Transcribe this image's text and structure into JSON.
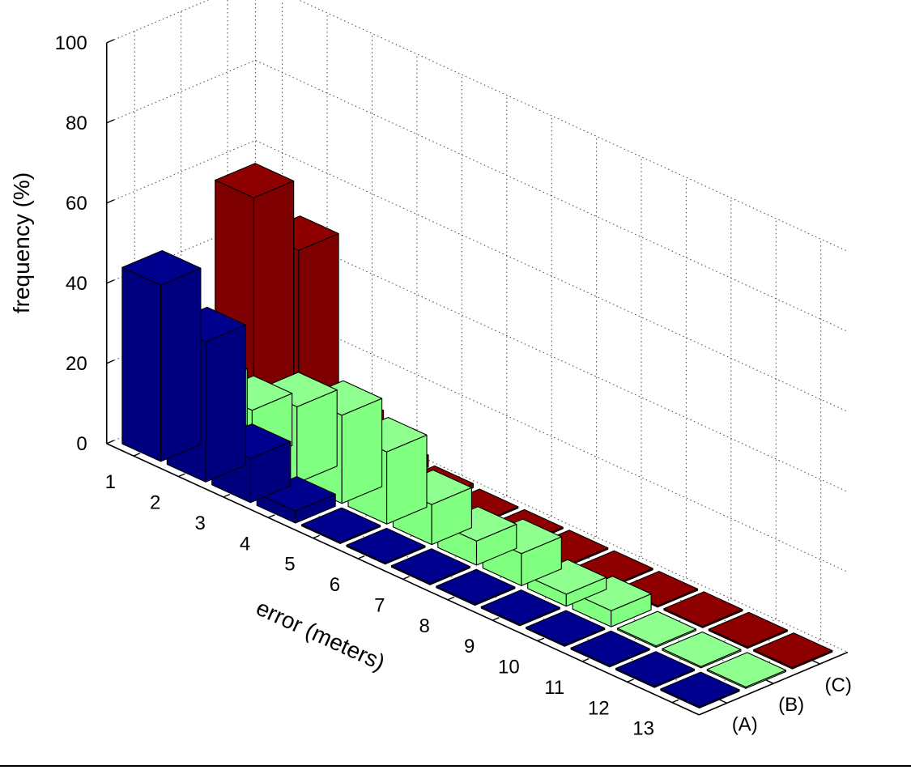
{
  "chart_data": {
    "type": "bar3d",
    "title": "",
    "xlabel": "error (meters)",
    "ylabel": "",
    "zlabel": "frequency (%)",
    "categories": [
      "1",
      "2",
      "3",
      "4",
      "5",
      "6",
      "7",
      "8",
      "9",
      "10",
      "11",
      "12",
      "13"
    ],
    "zlim": [
      0,
      100
    ],
    "zticks": [
      "0",
      "20",
      "40",
      "60",
      "80",
      "100"
    ],
    "grid": true,
    "series": [
      {
        "name": "(A)",
        "color": "#00007f",
        "values": [
          44,
          35,
          11,
          3,
          0,
          0,
          0,
          0,
          0,
          0,
          0,
          0,
          0
        ]
      },
      {
        "name": "(B)",
        "color": "#80ff80",
        "values": [
          14,
          13,
          19,
          22,
          18,
          10,
          6,
          8,
          3,
          4,
          0,
          0,
          0
        ]
      },
      {
        "name": "(C)",
        "color": "#7f0000",
        "values": [
          56,
          48,
          9,
          3,
          1,
          0,
          0,
          0,
          0,
          0,
          0,
          0,
          0
        ]
      }
    ]
  }
}
